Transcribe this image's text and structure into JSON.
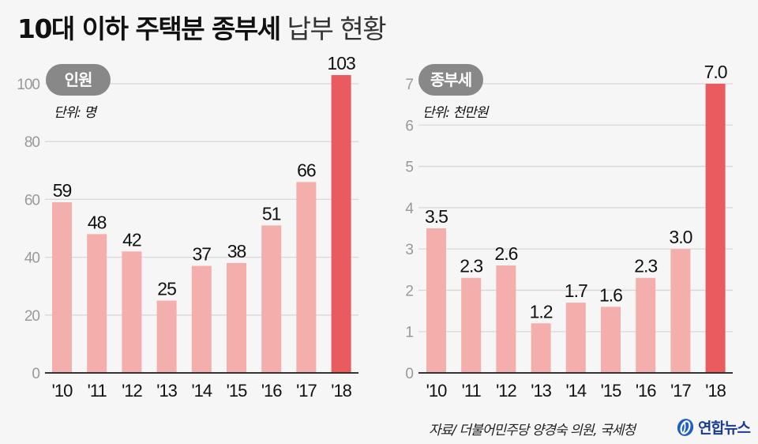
{
  "title": {
    "bold": "10대 이하 주택분 종부세",
    "light": "납부 현황"
  },
  "source": "자료/  더불어민주당 양경숙 의원, 국세청",
  "logo": {
    "text": "연합뉴스",
    "icon": "yonhap-globe-icon"
  },
  "colors": {
    "bar": "#f4aeab",
    "highlight": "#e95b5e",
    "grid": "#d8d8d8",
    "axis": "#333333",
    "pill": "#888888",
    "tick": "#999999"
  },
  "chart_data": [
    {
      "type": "bar",
      "title": "인원",
      "unit_label": "단위: 명",
      "categories": [
        "'10",
        "'11",
        "'12",
        "'13",
        "'14",
        "'15",
        "'16",
        "'17",
        "'18"
      ],
      "values": [
        59,
        48,
        42,
        25,
        37,
        38,
        51,
        66,
        103
      ],
      "value_labels": [
        "59",
        "48",
        "42",
        "25",
        "37",
        "38",
        "51",
        "66",
        "103"
      ],
      "highlight_index": 8,
      "yticks": [
        0,
        20,
        40,
        60,
        80,
        100
      ],
      "ylim": [
        0,
        100
      ],
      "grid": true,
      "xlabel": "",
      "ylabel": ""
    },
    {
      "type": "bar",
      "title": "종부세",
      "unit_label": "단위: 천만원",
      "categories": [
        "'10",
        "'11",
        "'12",
        "'13",
        "'14",
        "'15",
        "'16",
        "'17",
        "'18"
      ],
      "values": [
        3.5,
        2.3,
        2.6,
        1.2,
        1.7,
        1.6,
        2.3,
        3.0,
        7.0
      ],
      "value_labels": [
        "3.5",
        "2.3",
        "2.6",
        "1.2",
        "1.7",
        "1.6",
        "2.3",
        "3.0",
        "7.0"
      ],
      "highlight_index": 8,
      "yticks": [
        0,
        1,
        2,
        3,
        4,
        5,
        6,
        7
      ],
      "ylim": [
        0,
        7
      ],
      "grid": true,
      "xlabel": "",
      "ylabel": ""
    }
  ]
}
